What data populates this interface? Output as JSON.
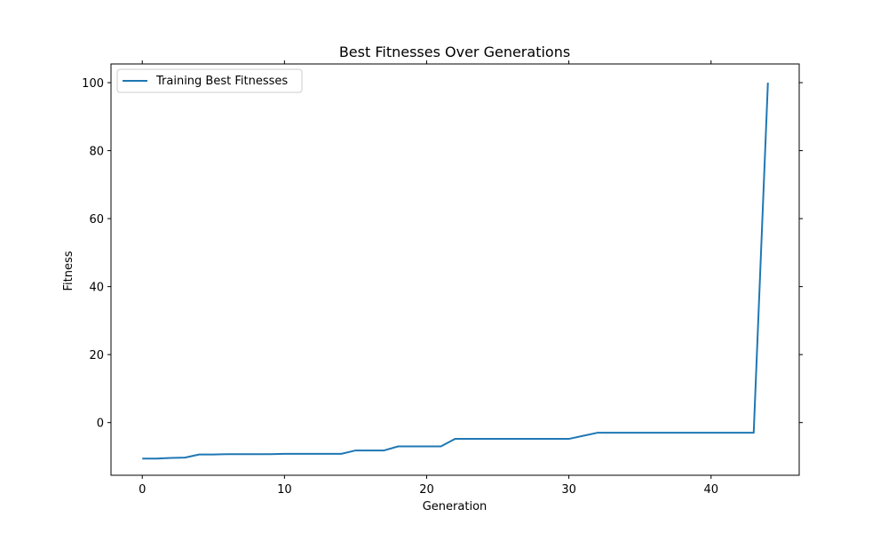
{
  "chart_data": {
    "type": "line",
    "title": "Best Fitnesses Over Generations",
    "xlabel": "Generation",
    "ylabel": "Fitness",
    "xlim": [
      -2.2,
      46.2
    ],
    "ylim": [
      -15.5,
      105.5
    ],
    "xticks": [
      0,
      10,
      20,
      30,
      40
    ],
    "yticks": [
      0,
      20,
      40,
      60,
      80,
      100
    ],
    "grid": false,
    "legend_position": "top-left",
    "series": [
      {
        "name": "Training Best Fitnesses",
        "color": "#1f77b4",
        "x": [
          0,
          1,
          2,
          3,
          4,
          5,
          6,
          7,
          8,
          9,
          10,
          11,
          12,
          13,
          14,
          15,
          16,
          17,
          18,
          19,
          20,
          21,
          22,
          23,
          24,
          25,
          26,
          27,
          28,
          29,
          30,
          31,
          32,
          33,
          34,
          35,
          36,
          37,
          38,
          39,
          40,
          41,
          42,
          43,
          44
        ],
        "y": [
          -10.6,
          -10.6,
          -10.4,
          -10.3,
          -9.4,
          -9.4,
          -9.3,
          -9.3,
          -9.3,
          -9.3,
          -9.2,
          -9.2,
          -9.2,
          -9.2,
          -9.2,
          -8.2,
          -8.2,
          -8.2,
          -7.0,
          -7.0,
          -7.0,
          -7.0,
          -4.8,
          -4.8,
          -4.8,
          -4.8,
          -4.8,
          -4.8,
          -4.8,
          -4.8,
          -4.8,
          -3.9,
          -3.0,
          -3.0,
          -3.0,
          -3.0,
          -3.0,
          -3.0,
          -3.0,
          -3.0,
          -3.0,
          -3.0,
          -3.0,
          -3.0,
          100.0
        ]
      }
    ]
  }
}
